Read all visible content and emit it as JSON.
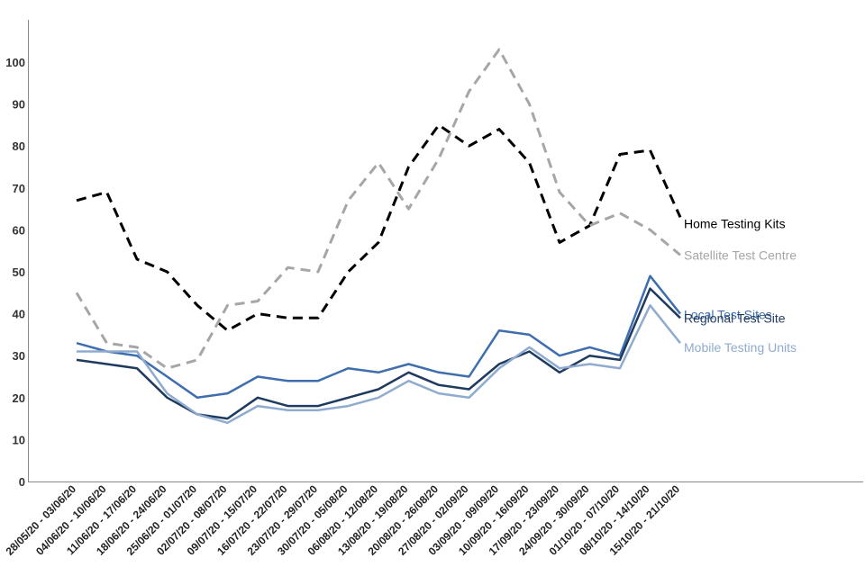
{
  "chart_data": {
    "type": "line",
    "title": "",
    "xlabel": "",
    "ylabel": "",
    "ylim": [
      0,
      110
    ],
    "yticks": [
      0,
      10,
      20,
      30,
      40,
      50,
      60,
      70,
      80,
      90,
      100
    ],
    "grid": false,
    "legend": "end-of-line labels",
    "categories": [
      "28/05/20 - 03/06/20",
      "04/06/20 - 10/06/20",
      "11/06/20 - 17/06/20",
      "18/06/20 - 24/06/20",
      "25/06/20 - 01/07/20",
      "02/07/20 - 08/07/20",
      "09/07/20 - 15/07/20",
      "16/07/20 - 22/07/20",
      "23/07/20 - 29/07/20",
      "30/07/20 - 05/08/20",
      "06/08/20 - 12/08/20",
      "13/08/20 - 19/08/20",
      "20/08/20 - 26/08/20",
      "27/08/20 - 02/09/20",
      "03/09/20 - 09/09/20",
      "10/09/20 - 16/09/20",
      "17/09/20 - 23/09/20",
      "24/09/20 - 30/09/20",
      "01/10/20 - 07/10/20",
      "08/10/20 - 14/10/20",
      "15/10/20 - 21/10/20"
    ],
    "series": [
      {
        "name": "Home Testing Kits",
        "color": "#000000",
        "dashed": true,
        "values": [
          67,
          69,
          53,
          50,
          42,
          36,
          40,
          39,
          39,
          50,
          57,
          75,
          85,
          80,
          84,
          76,
          57,
          61,
          78,
          79,
          63
        ]
      },
      {
        "name": "Satellite Test Centre",
        "color": "#a6a6a6",
        "dashed": true,
        "values": [
          45,
          33,
          32,
          27,
          29,
          42,
          43,
          51,
          50,
          67,
          76,
          65,
          77,
          93,
          103,
          90,
          69,
          61,
          64,
          60,
          54
        ]
      },
      {
        "name": "Local Test Sites",
        "color": "#3f6eae",
        "dashed": false,
        "values": [
          33,
          31,
          30,
          25,
          20,
          21,
          25,
          24,
          24,
          27,
          26,
          28,
          26,
          25,
          36,
          35,
          30,
          32,
          30,
          49,
          40
        ]
      },
      {
        "name": "Regional Test Site",
        "color": "#1f3a5f",
        "dashed": false,
        "values": [
          29,
          28,
          27,
          20,
          16,
          15,
          20,
          18,
          18,
          20,
          22,
          26,
          23,
          22,
          28,
          31,
          26,
          30,
          29,
          46,
          39
        ]
      },
      {
        "name": "Mobile Testing Units",
        "color": "#8fabcf",
        "dashed": false,
        "values": [
          31,
          31,
          31,
          21,
          16,
          14,
          18,
          17,
          17,
          18,
          20,
          24,
          21,
          20,
          27,
          32,
          27,
          28,
          27,
          42,
          33
        ]
      }
    ]
  }
}
